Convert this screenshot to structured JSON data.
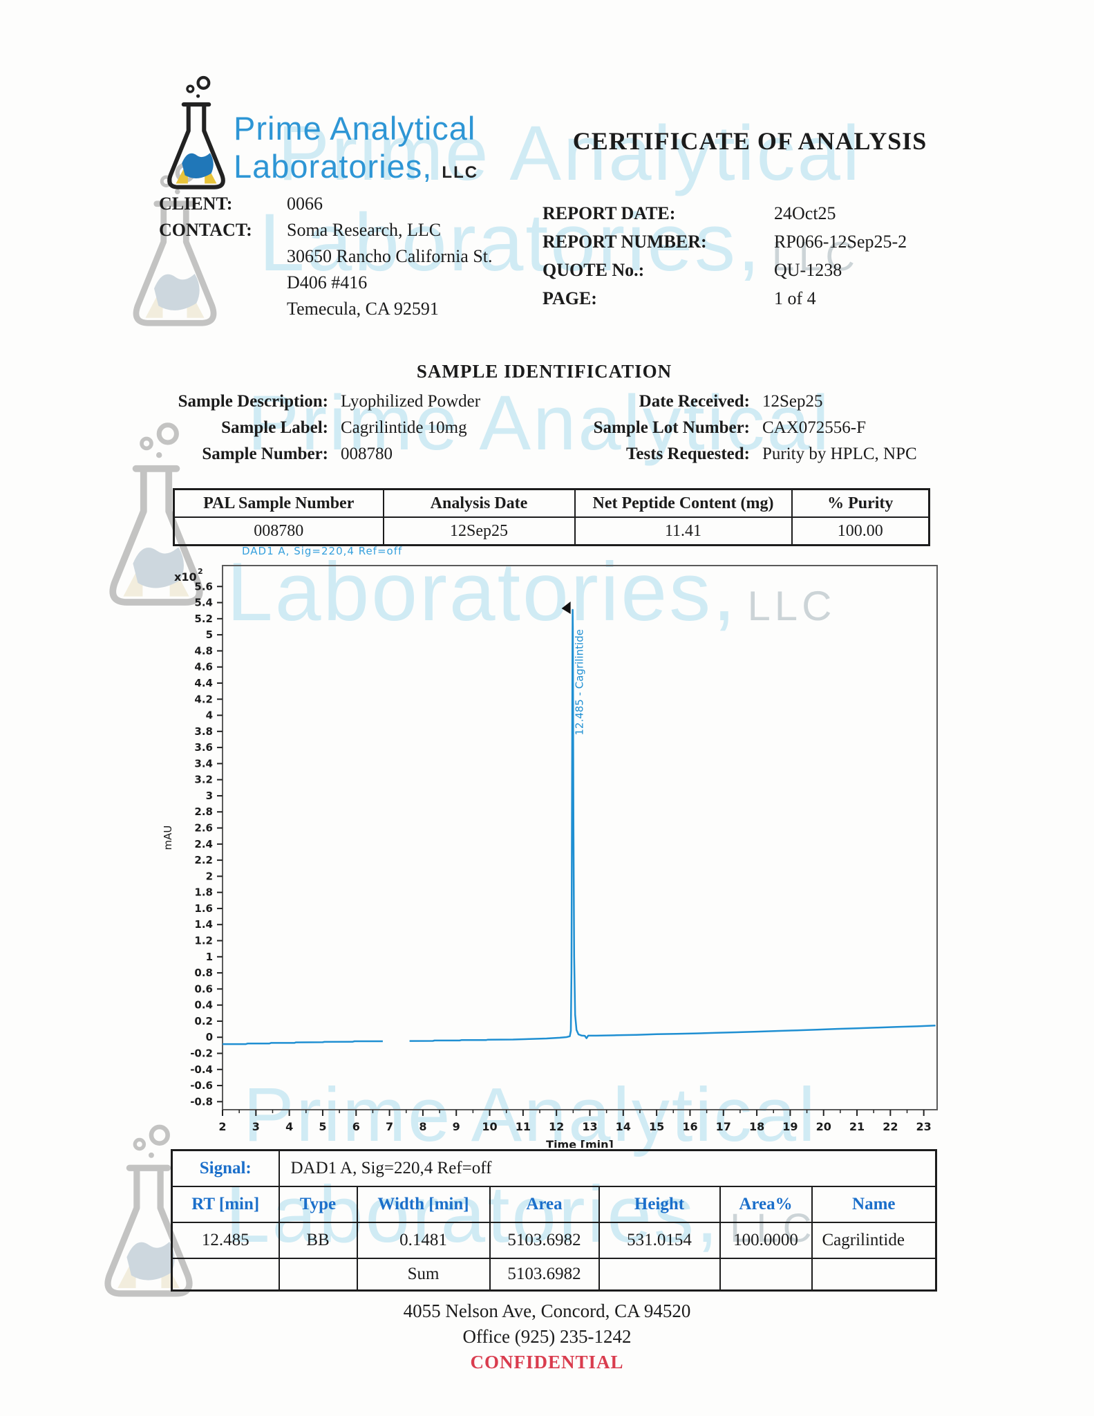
{
  "logo": {
    "line1": "Prime Analytical",
    "line2": "Laboratories,",
    "suffix": "LLC"
  },
  "title": "CERTIFICATE OF ANALYSIS",
  "client_info": {
    "client_label": "CLIENT:",
    "client_value": "0066",
    "contact_label": "CONTACT:",
    "contact_name": "Soma Research, LLC",
    "address_lines": [
      "30650 Rancho California St.",
      "D406 #416",
      "Temecula, CA 92591"
    ]
  },
  "report_info": {
    "rows": [
      {
        "label": "REPORT DATE:",
        "value": "24Oct25"
      },
      {
        "label": "REPORT NUMBER:",
        "value": "RP066-12Sep25-2"
      },
      {
        "label": "QUOTE No.:",
        "value": "QU-1238"
      },
      {
        "label": "PAGE:",
        "value": "1 of 4"
      }
    ]
  },
  "sample_identification": {
    "heading": "SAMPLE IDENTIFICATION",
    "left_rows": [
      {
        "label": "Sample Description:",
        "value": "Lyophilized Powder"
      },
      {
        "label": "Sample Label:",
        "value": "Cagrilintide 10mg"
      },
      {
        "label": "Sample Number:",
        "value": "008780"
      }
    ],
    "right_rows": [
      {
        "label": "Date Received:",
        "value": "12Sep25"
      },
      {
        "label": "Sample Lot Number:",
        "value": "CAX072556-F"
      },
      {
        "label": "Tests Requested:",
        "value": "Purity by HPLC, NPC"
      }
    ]
  },
  "summary_table": {
    "headers": [
      "PAL Sample Number",
      "Analysis Date",
      "Net Peptide Content (mg)",
      "% Purity"
    ],
    "rows": [
      [
        "008780",
        "12Sep25",
        "11.41",
        "100.00"
      ]
    ]
  },
  "chart_data": {
    "type": "line",
    "title": "DAD1 A, Sig=220,4 Ref=off",
    "xlabel": "Time [min]",
    "ylabel": "mAU",
    "y_multiplier": "x10 2",
    "xlim": [
      2,
      23.4
    ],
    "ylim": [
      -0.9,
      5.86
    ],
    "x_ticks": [
      2,
      3,
      4,
      5,
      6,
      7,
      8,
      9,
      10,
      11,
      12,
      13,
      14,
      15,
      16,
      17,
      18,
      19,
      20,
      21,
      22,
      23
    ],
    "y_ticks": [
      5.6,
      5.4,
      5.2,
      5,
      4.8,
      4.6,
      4.4,
      4.2,
      4,
      3.8,
      3.6,
      3.4,
      3.2,
      3,
      2.8,
      2.6,
      2.4,
      2.2,
      2,
      1.8,
      1.6,
      1.4,
      1.2,
      1,
      0.8,
      0.6,
      0.4,
      0.2,
      0,
      -0.2,
      -0.4,
      -0.6,
      -0.8
    ],
    "grid": false,
    "line_color": "#1f8fd2",
    "peak": {
      "rt_min": 12.485,
      "apex_mau_x100": 5.31,
      "label": "12.485 - Cagrilintide",
      "name": "Cagrilintide"
    },
    "series": [
      {
        "name": "DAD1 A, Sig=220,4 Ref=off",
        "segments": [
          [
            [
              2.0,
              -0.085
            ],
            [
              2.7,
              -0.085
            ],
            [
              2.75,
              -0.078
            ],
            [
              3.4,
              -0.078
            ],
            [
              3.45,
              -0.07
            ],
            [
              4.15,
              -0.07
            ],
            [
              4.2,
              -0.063
            ],
            [
              5.0,
              -0.062
            ],
            [
              5.05,
              -0.057
            ],
            [
              5.9,
              -0.056
            ],
            [
              5.95,
              -0.05
            ],
            [
              6.8,
              -0.05
            ]
          ],
          [
            [
              7.6,
              -0.046
            ],
            [
              8.3,
              -0.045
            ],
            [
              8.35,
              -0.04
            ],
            [
              9.1,
              -0.04
            ],
            [
              9.15,
              -0.035
            ],
            [
              9.9,
              -0.034
            ],
            [
              9.95,
              -0.03
            ],
            [
              10.7,
              -0.028
            ],
            [
              11.2,
              -0.022
            ],
            [
              11.7,
              -0.015
            ],
            [
              12.1,
              -0.006
            ],
            [
              12.3,
              0.002
            ],
            [
              12.4,
              0.012
            ],
            [
              12.43,
              0.08
            ],
            [
              12.45,
              0.8
            ],
            [
              12.46,
              2.2
            ],
            [
              12.47,
              3.6
            ],
            [
              12.48,
              4.9
            ],
            [
              12.485,
              5.31
            ],
            [
              12.49,
              5.1
            ],
            [
              12.5,
              4.0
            ],
            [
              12.51,
              2.6
            ],
            [
              12.53,
              1.0
            ],
            [
              12.56,
              0.28
            ],
            [
              12.6,
              0.09
            ],
            [
              12.66,
              0.035
            ],
            [
              12.75,
              0.022
            ],
            [
              12.85,
              0.018
            ],
            [
              12.9,
              -0.012
            ],
            [
              12.95,
              0.02
            ],
            [
              13.2,
              0.02
            ],
            [
              13.8,
              0.025
            ],
            [
              14.4,
              0.03
            ],
            [
              15.0,
              0.038
            ],
            [
              15.6,
              0.042
            ],
            [
              16.2,
              0.048
            ],
            [
              16.8,
              0.055
            ],
            [
              17.4,
              0.062
            ],
            [
              18.0,
              0.07
            ],
            [
              18.6,
              0.078
            ],
            [
              19.2,
              0.086
            ],
            [
              19.8,
              0.095
            ],
            [
              20.4,
              0.104
            ],
            [
              21.0,
              0.112
            ],
            [
              21.6,
              0.12
            ],
            [
              22.2,
              0.128
            ],
            [
              22.8,
              0.136
            ],
            [
              23.35,
              0.145
            ]
          ]
        ]
      }
    ]
  },
  "results_table": {
    "signal_label": "Signal:",
    "signal_value": "DAD1 A, Sig=220,4 Ref=off",
    "headers": [
      "RT [min]",
      "Type",
      "Width [min]",
      "Area",
      "Height",
      "Area%",
      "Name"
    ],
    "rows": [
      [
        "12.485",
        "BB",
        "0.1481",
        "5103.6982",
        "531.0154",
        "100.0000",
        "Cagrilintide"
      ]
    ],
    "sum_row": {
      "label": "Sum",
      "area": "5103.6982"
    }
  },
  "footer": {
    "address": "4055 Nelson Ave, Concord, CA 94520",
    "phone": "Office (925) 235-1242",
    "confidential": "CONFIDENTIAL"
  },
  "watermark": {
    "line1": "Prime Analytical",
    "line2": "Laboratories,",
    "suffix": "LLC"
  },
  "colors": {
    "accent_blue": "#2e96d5",
    "table_header_blue": "#1b6fca",
    "chart_line_blue": "#1f8fd2",
    "chart_title_blue": "#35a0dd",
    "confidential_red": "#d93c4e",
    "watermark_cyan": "#79c7e4",
    "logo_liquid_blue": "#2077b8",
    "logo_yellow": "#e8c43c"
  }
}
